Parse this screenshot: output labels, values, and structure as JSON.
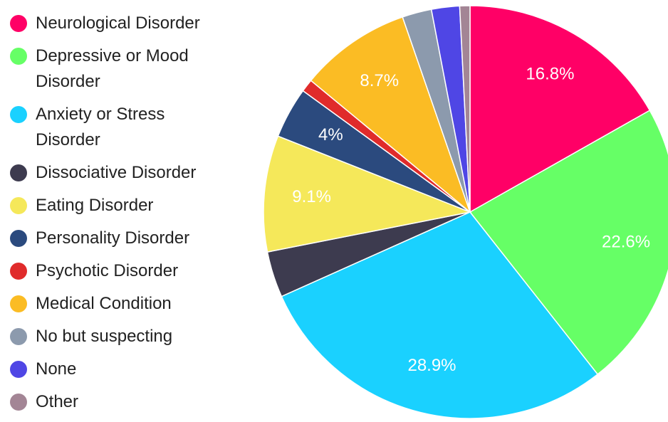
{
  "chart_data": {
    "type": "pie",
    "categories": [
      "Neurological Disorder",
      "Depressive or Mood Disorder",
      "Anxiety or Stress Disorder",
      "Dissociative Disorder",
      "Eating Disorder",
      "Personality Disorder",
      "Psychotic Disorder",
      "Medical Condition",
      "No but suspecting",
      "None",
      "Other"
    ],
    "values": [
      16.8,
      22.6,
      28.9,
      3.6,
      9.1,
      4,
      1.0,
      8.7,
      2.3,
      2.2,
      0.8
    ],
    "value_labels": [
      "16.8%",
      "22.6%",
      "28.9%",
      null,
      "9.1%",
      "4%",
      null,
      "8.7%",
      null,
      null,
      null
    ],
    "colors": [
      "#ff0066",
      "#66ff66",
      "#1ad1ff",
      "#3d3b4f",
      "#f5e85a",
      "#2b4a7e",
      "#e02b2b",
      "#fbbc24",
      "#8c9aad",
      "#4f46e5",
      "#a38595"
    ],
    "legend": "left"
  }
}
